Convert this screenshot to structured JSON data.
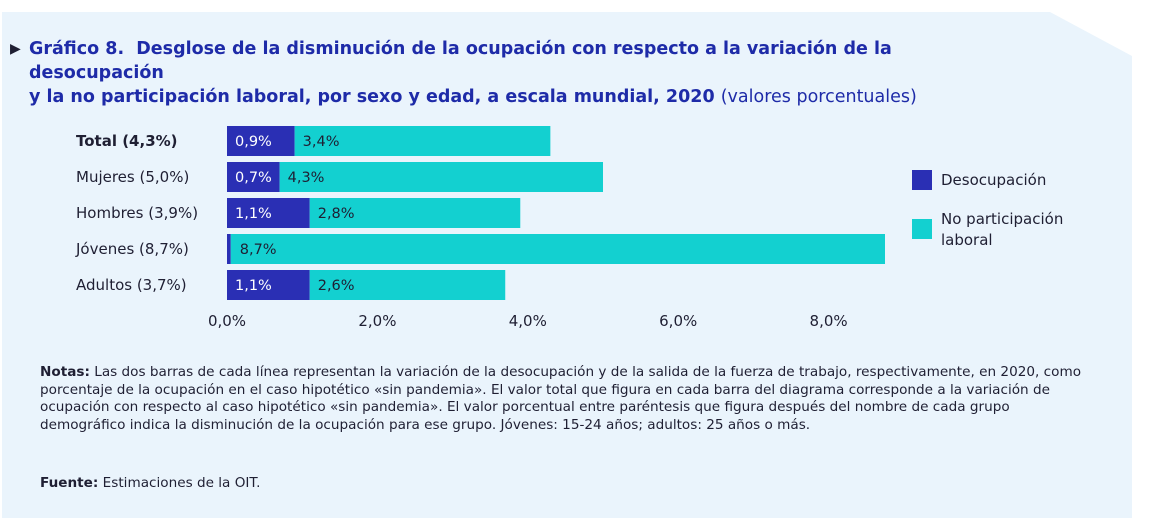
{
  "title": {
    "number": "Gráfico 8.",
    "line1": "Desglose de la disminución de la ocupación con respecto a la variación de la desocupación",
    "line2": "y la no participación laboral, por sexo y edad, a escala mundial, 2020",
    "unit": "(valores porcentuales)"
  },
  "colors": {
    "desocupacion": "#2a2fb4",
    "no_participacion": "#13d0d0",
    "text": "#1f1f33",
    "title": "#1e2ba8",
    "panel": "#eaf4fc"
  },
  "chart_data": {
    "type": "bar",
    "orientation": "horizontal",
    "stacked": true,
    "categories": [
      "Total (4,3%)",
      "Mujeres (5,0%)",
      "Hombres (3,9%)",
      "Jóvenes (8,7%)",
      "Adultos (3,7%)"
    ],
    "bold_categories": [
      "Total (4,3%)"
    ],
    "series": [
      {
        "name": "Desocupación",
        "values": [
          0.9,
          0.7,
          1.1,
          0.05,
          1.1
        ],
        "labels": [
          "0,9%",
          "0,7%",
          "1,1%",
          "",
          "1,1%"
        ]
      },
      {
        "name": "No participación laboral",
        "values": [
          3.4,
          4.3,
          2.8,
          8.7,
          2.6
        ],
        "labels": [
          "3,4%",
          "4,3%",
          "2,8%",
          "8,7%",
          "2,6%"
        ]
      }
    ],
    "xlim": [
      0,
      8.0
    ],
    "xticks": [
      0,
      2,
      4,
      6,
      8
    ],
    "xtick_labels": [
      "0,0%",
      "2,0%",
      "4,0%",
      "6,0%",
      "8,0%"
    ],
    "grid": false,
    "legend_position": "right"
  },
  "legend": {
    "desocupacion": "Desocupación",
    "no_participacion_1": "No participación",
    "no_participacion_2": "laboral"
  },
  "notes": {
    "label": "Notas:",
    "text": "Las dos barras de cada línea representan la variación de la desocupación y de la salida de la fuerza de trabajo, respectivamente, en 2020, como porcentaje de la ocupación en el caso hipotético «sin pandemia». El valor total que figura en cada barra del diagrama corresponde a la variación de ocupación con respecto al caso hipotético «sin pandemia». El valor porcentual entre paréntesis que figura después del nombre de cada grupo demográfico indica la disminución de la ocupación para ese grupo. Jóvenes: 15-24 años; adultos: 25 años o más."
  },
  "source": {
    "label": "Fuente:",
    "text": "Estimaciones de la OIT."
  }
}
